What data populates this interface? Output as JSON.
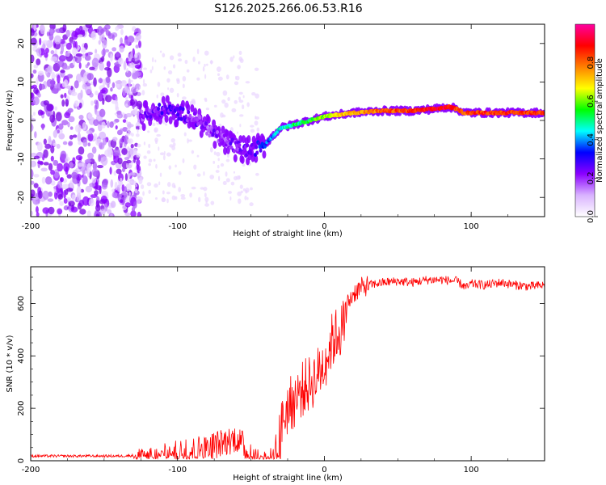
{
  "figure": {
    "title": "S126.2025.266.06.53.R16"
  },
  "chart_data": [
    {
      "type": "heatmap",
      "title": "",
      "xlabel": "Height of straight line (km)",
      "ylabel": "Frequency (Hz)",
      "xlim": [
        -200,
        150
      ],
      "ylim": [
        -25,
        25
      ],
      "x_ticks": [
        -200,
        -100,
        0,
        100
      ],
      "y_ticks": [
        -20,
        -10,
        0,
        10,
        20
      ],
      "grid": false,
      "colorbar": {
        "label": "Normalized spectral amplitude",
        "range": [
          0,
          1
        ],
        "ticks": [
          "0.0",
          "0.2",
          "0.4",
          "0.6",
          "0.8"
        ],
        "tick_values": [
          0.0,
          0.2,
          0.4,
          0.6,
          0.8
        ],
        "colors": [
          "#ffffff",
          "#d9b3ff",
          "#8b00ff",
          "#0000ff",
          "#00ffff",
          "#00ff00",
          "#ffff00",
          "#ff8000",
          "#ff0000",
          "#ff00a0"
        ]
      },
      "ridge": {
        "x": [
          -125,
          -110,
          -100,
          -90,
          -80,
          -70,
          -60,
          -50,
          -45,
          -40,
          -35,
          -30,
          -20,
          -10,
          0,
          10,
          20,
          40,
          60,
          75,
          85,
          90,
          95,
          100,
          120,
          150
        ],
        "freq": [
          1,
          3,
          2,
          1,
          -2,
          -5,
          -7,
          -8,
          -7,
          -6,
          -4,
          -2,
          -1,
          0,
          1,
          1.5,
          2,
          2.5,
          2.5,
          3,
          3.5,
          3,
          2,
          2,
          2,
          2
        ],
        "amp": [
          0.2,
          0.25,
          0.25,
          0.22,
          0.2,
          0.2,
          0.22,
          0.25,
          0.3,
          0.35,
          0.4,
          0.45,
          0.5,
          0.55,
          0.6,
          0.7,
          0.75,
          0.8,
          0.85,
          0.9,
          0.9,
          0.85,
          0.8,
          0.85,
          0.85,
          0.85
        ]
      }
    },
    {
      "type": "line",
      "title": "",
      "xlabel": "Height of straight line (km)",
      "ylabel": "SNR (10 * v/v)",
      "xlim": [
        -200,
        150
      ],
      "ylim": [
        0,
        740
      ],
      "x_ticks": [
        -200,
        -100,
        0,
        100
      ],
      "y_ticks": [
        0,
        200,
        400,
        600
      ],
      "grid": false,
      "series": [
        {
          "name": "SNR",
          "color": "#ff0000",
          "x": [
            -200,
            -180,
            -160,
            -140,
            -130,
            -120,
            -110,
            -100,
            -90,
            -80,
            -70,
            -60,
            -55,
            -50,
            -45,
            -40,
            -35,
            -33,
            -30,
            -28,
            -25,
            -20,
            -15,
            -10,
            -5,
            0,
            5,
            10,
            15,
            20,
            25,
            30,
            40,
            50,
            60,
            70,
            80,
            90,
            97,
            100,
            110,
            120,
            130,
            140,
            150
          ],
          "y": [
            20,
            20,
            20,
            20,
            22,
            28,
            45,
            60,
            70,
            85,
            100,
            120,
            90,
            50,
            35,
            30,
            30,
            60,
            160,
            230,
            270,
            300,
            340,
            360,
            390,
            440,
            520,
            560,
            590,
            640,
            660,
            670,
            680,
            685,
            680,
            690,
            690,
            685,
            660,
            675,
            670,
            680,
            670,
            665,
            670
          ]
        }
      ]
    }
  ]
}
